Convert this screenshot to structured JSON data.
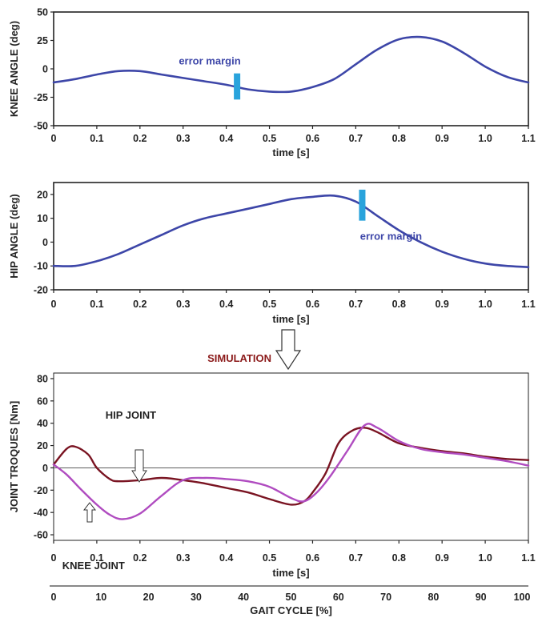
{
  "colors": {
    "measured": "#3d46a8",
    "marker": "#29a3dc",
    "hip_torque": "#7a1422",
    "knee_torque": "#b04cc0",
    "simulation_text": "#8b1a1a",
    "axis": "#222222"
  },
  "simulation_label": "SIMULATION",
  "chart_data": [
    {
      "type": "line",
      "ylabel": "KNEE ANGLE (deg)",
      "xlabel": "time [s]",
      "xlim": [
        0,
        1.1
      ],
      "ylim": [
        -50,
        50
      ],
      "xticks": [
        0,
        0.1,
        0.2,
        0.3,
        0.4,
        0.5,
        0.6,
        0.7,
        0.8,
        0.9,
        1.0,
        1.1
      ],
      "xtick_labels": [
        "0",
        "0.1",
        "0.2",
        "0.3",
        "0.4",
        "0.5",
        "0.6",
        "0.7",
        "0.8",
        "0.9",
        "1.0",
        "1.1"
      ],
      "yticks": [
        -50,
        -25,
        0,
        25,
        50
      ],
      "ytick_labels": [
        "-50",
        "-25",
        "0",
        "25",
        "50"
      ],
      "series": [
        {
          "x": [
            0,
            0.05,
            0.1,
            0.15,
            0.2,
            0.25,
            0.3,
            0.35,
            0.4,
            0.45,
            0.5,
            0.55,
            0.6,
            0.65,
            0.7,
            0.75,
            0.8,
            0.85,
            0.9,
            0.95,
            1.0,
            1.05,
            1.1
          ],
          "y": [
            -12,
            -9,
            -5,
            -2,
            -2,
            -5,
            -8,
            -11,
            -14,
            -18,
            -20,
            -20,
            -16,
            -9,
            4,
            17,
            26,
            28,
            24,
            14,
            2,
            -7,
            -12
          ]
        }
      ],
      "annotations": [
        {
          "text": "error margin",
          "x": 0.29,
          "y": 4
        }
      ],
      "error_bar": {
        "x": 0.425,
        "y_low": -27,
        "y_high": -4
      }
    },
    {
      "type": "line",
      "ylabel": "HIP ANGLE (deg)",
      "xlabel": "time [s]",
      "xlim": [
        0,
        1.1
      ],
      "ylim": [
        -20,
        25
      ],
      "xticks": [
        0,
        0.1,
        0.2,
        0.3,
        0.4,
        0.5,
        0.6,
        0.7,
        0.8,
        0.9,
        1.0,
        1.1
      ],
      "xtick_labels": [
        "0",
        "0.1",
        "0.2",
        "0.3",
        "0.4",
        "0.5",
        "0.6",
        "0.7",
        "0.8",
        "0.9",
        "1.0",
        "1.1"
      ],
      "yticks": [
        -20,
        -10,
        0,
        10,
        20
      ],
      "ytick_labels": [
        "-20",
        "-10",
        "0",
        "10",
        "20"
      ],
      "series": [
        {
          "x": [
            0,
            0.05,
            0.1,
            0.15,
            0.2,
            0.25,
            0.3,
            0.35,
            0.4,
            0.45,
            0.5,
            0.55,
            0.6,
            0.65,
            0.7,
            0.75,
            0.8,
            0.85,
            0.9,
            0.95,
            1.0,
            1.05,
            1.1
          ],
          "y": [
            -10,
            -10,
            -8,
            -5,
            -1,
            3,
            7,
            10,
            12,
            14,
            16,
            18,
            19,
            19.5,
            17,
            11,
            5,
            0,
            -4,
            -7,
            -9,
            -10,
            -10.5
          ]
        }
      ],
      "annotations": [
        {
          "text": "error margin",
          "x": 0.71,
          "y": 1
        }
      ],
      "error_bar": {
        "x": 0.715,
        "y_low": 9,
        "y_high": 22
      }
    },
    {
      "type": "line",
      "ylabel": "JOINT TROQUES [Nm]",
      "xlabel": "time [s]",
      "x2label": "GAIT CYCLE [%]",
      "xlim": [
        0,
        1.1
      ],
      "ylim": [
        -65,
        85
      ],
      "x2lim": [
        0,
        100
      ],
      "xticks": [
        0,
        0.1,
        0.2,
        0.3,
        0.4,
        0.5,
        0.6,
        0.7,
        0.8,
        0.9,
        1.0,
        1.1
      ],
      "xtick_labels": [
        "0",
        "0.1",
        "0.2",
        "0.3",
        "0.4",
        "0.5",
        "0.6",
        "0.7",
        "0.8",
        "0.9",
        "1.0",
        "1.1"
      ],
      "yticks": [
        -60,
        -40,
        -20,
        0,
        20,
        40,
        60,
        80
      ],
      "ytick_labels": [
        "-60",
        "-40",
        "-20",
        "0",
        "20",
        "40",
        "60",
        "80"
      ],
      "x2ticks": [
        0,
        10,
        20,
        30,
        40,
        50,
        60,
        70,
        80,
        90,
        100
      ],
      "x2tick_labels": [
        "0",
        "10",
        "20",
        "30",
        "40",
        "50",
        "60",
        "70",
        "80",
        "90",
        "100"
      ],
      "series": [
        {
          "name": "HIP JOINT",
          "x": [
            0,
            0.03,
            0.05,
            0.08,
            0.1,
            0.13,
            0.15,
            0.2,
            0.25,
            0.3,
            0.35,
            0.4,
            0.45,
            0.5,
            0.55,
            0.58,
            0.6,
            0.63,
            0.66,
            0.69,
            0.72,
            0.75,
            0.8,
            0.85,
            0.9,
            0.95,
            1.0,
            1.05,
            1.1
          ],
          "y": [
            3,
            17,
            19,
            12,
            0,
            -10,
            -12,
            -11,
            -9,
            -11,
            -14,
            -18,
            -22,
            -28,
            -33,
            -30,
            -22,
            -5,
            22,
            33,
            36,
            32,
            22,
            18,
            15,
            13,
            10,
            8,
            7
          ]
        },
        {
          "name": "KNEE JOINT",
          "x": [
            0,
            0.03,
            0.06,
            0.1,
            0.13,
            0.16,
            0.2,
            0.25,
            0.3,
            0.35,
            0.4,
            0.45,
            0.5,
            0.55,
            0.58,
            0.61,
            0.64,
            0.68,
            0.72,
            0.75,
            0.8,
            0.85,
            0.9,
            0.95,
            1.0,
            1.05,
            1.1
          ],
          "y": [
            3,
            -6,
            -18,
            -33,
            -42,
            -46,
            -41,
            -25,
            -11,
            -9,
            -10,
            -12,
            -17,
            -27,
            -30,
            -22,
            -8,
            15,
            38,
            36,
            24,
            17,
            14,
            12,
            9,
            6,
            2
          ]
        }
      ],
      "annotations": [
        {
          "text": "HIP JOINT",
          "x": 0.12,
          "y": 44
        },
        {
          "text": "KNEE JOINT",
          "x": 0.02,
          "y": -91
        }
      ],
      "zero_line": true
    }
  ]
}
